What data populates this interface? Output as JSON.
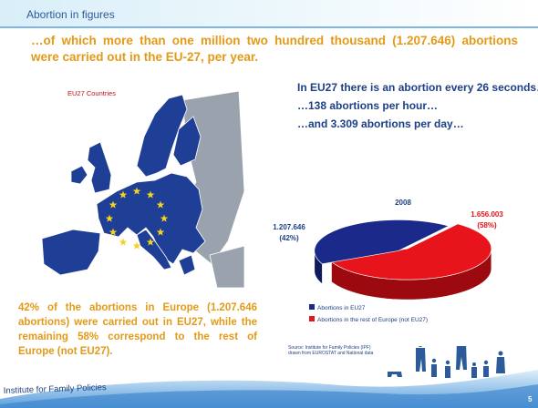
{
  "slide": {
    "title": "Abortion in figures",
    "headline": "…of which more than one million two hundred thousand (1.207.646) abortions were carried out in the EU-27, per year.",
    "right_lines": [
      "In EU27 there is an abortion every 26 seconds…",
      "…138 abortions per hour…",
      "…and 3.309 abortions per day…"
    ],
    "map_label": "EU27 Countries",
    "bottom_text": "42% of the abortions in Europe (1.207.646 abortions) were carried out in EU27, while the remaining 58% correspond to the rest of Europe (not EU27).",
    "source_line1": "Source: Institute for Family Policies (IPF)",
    "source_line2": "drawn from EUROSTAT and National data",
    "footer_brand": "Institute for Family Policies",
    "page_number": "5"
  },
  "chart_data": {
    "type": "pie",
    "title": "2008",
    "slices": [
      {
        "label": "Abortions in EU27",
        "value": 1207646,
        "value_text": "1.207.646",
        "percent_text": "(42%)",
        "color": "#1b2a8a"
      },
      {
        "label": "Abortions in the rest of Europe (not EU27)",
        "value": 1656003,
        "value_text": "1.656.003",
        "percent_text": "(58%)",
        "color": "#e8141c"
      }
    ],
    "legend_position": "bottom"
  },
  "colors": {
    "accent_orange": "#e39a17",
    "navy": "#1d3f85",
    "title_blue": "#2a5b9c",
    "eu_blue": "#1f3f97",
    "non_eu_gray": "#9aa3ad",
    "star_yellow": "#f4d21f"
  }
}
